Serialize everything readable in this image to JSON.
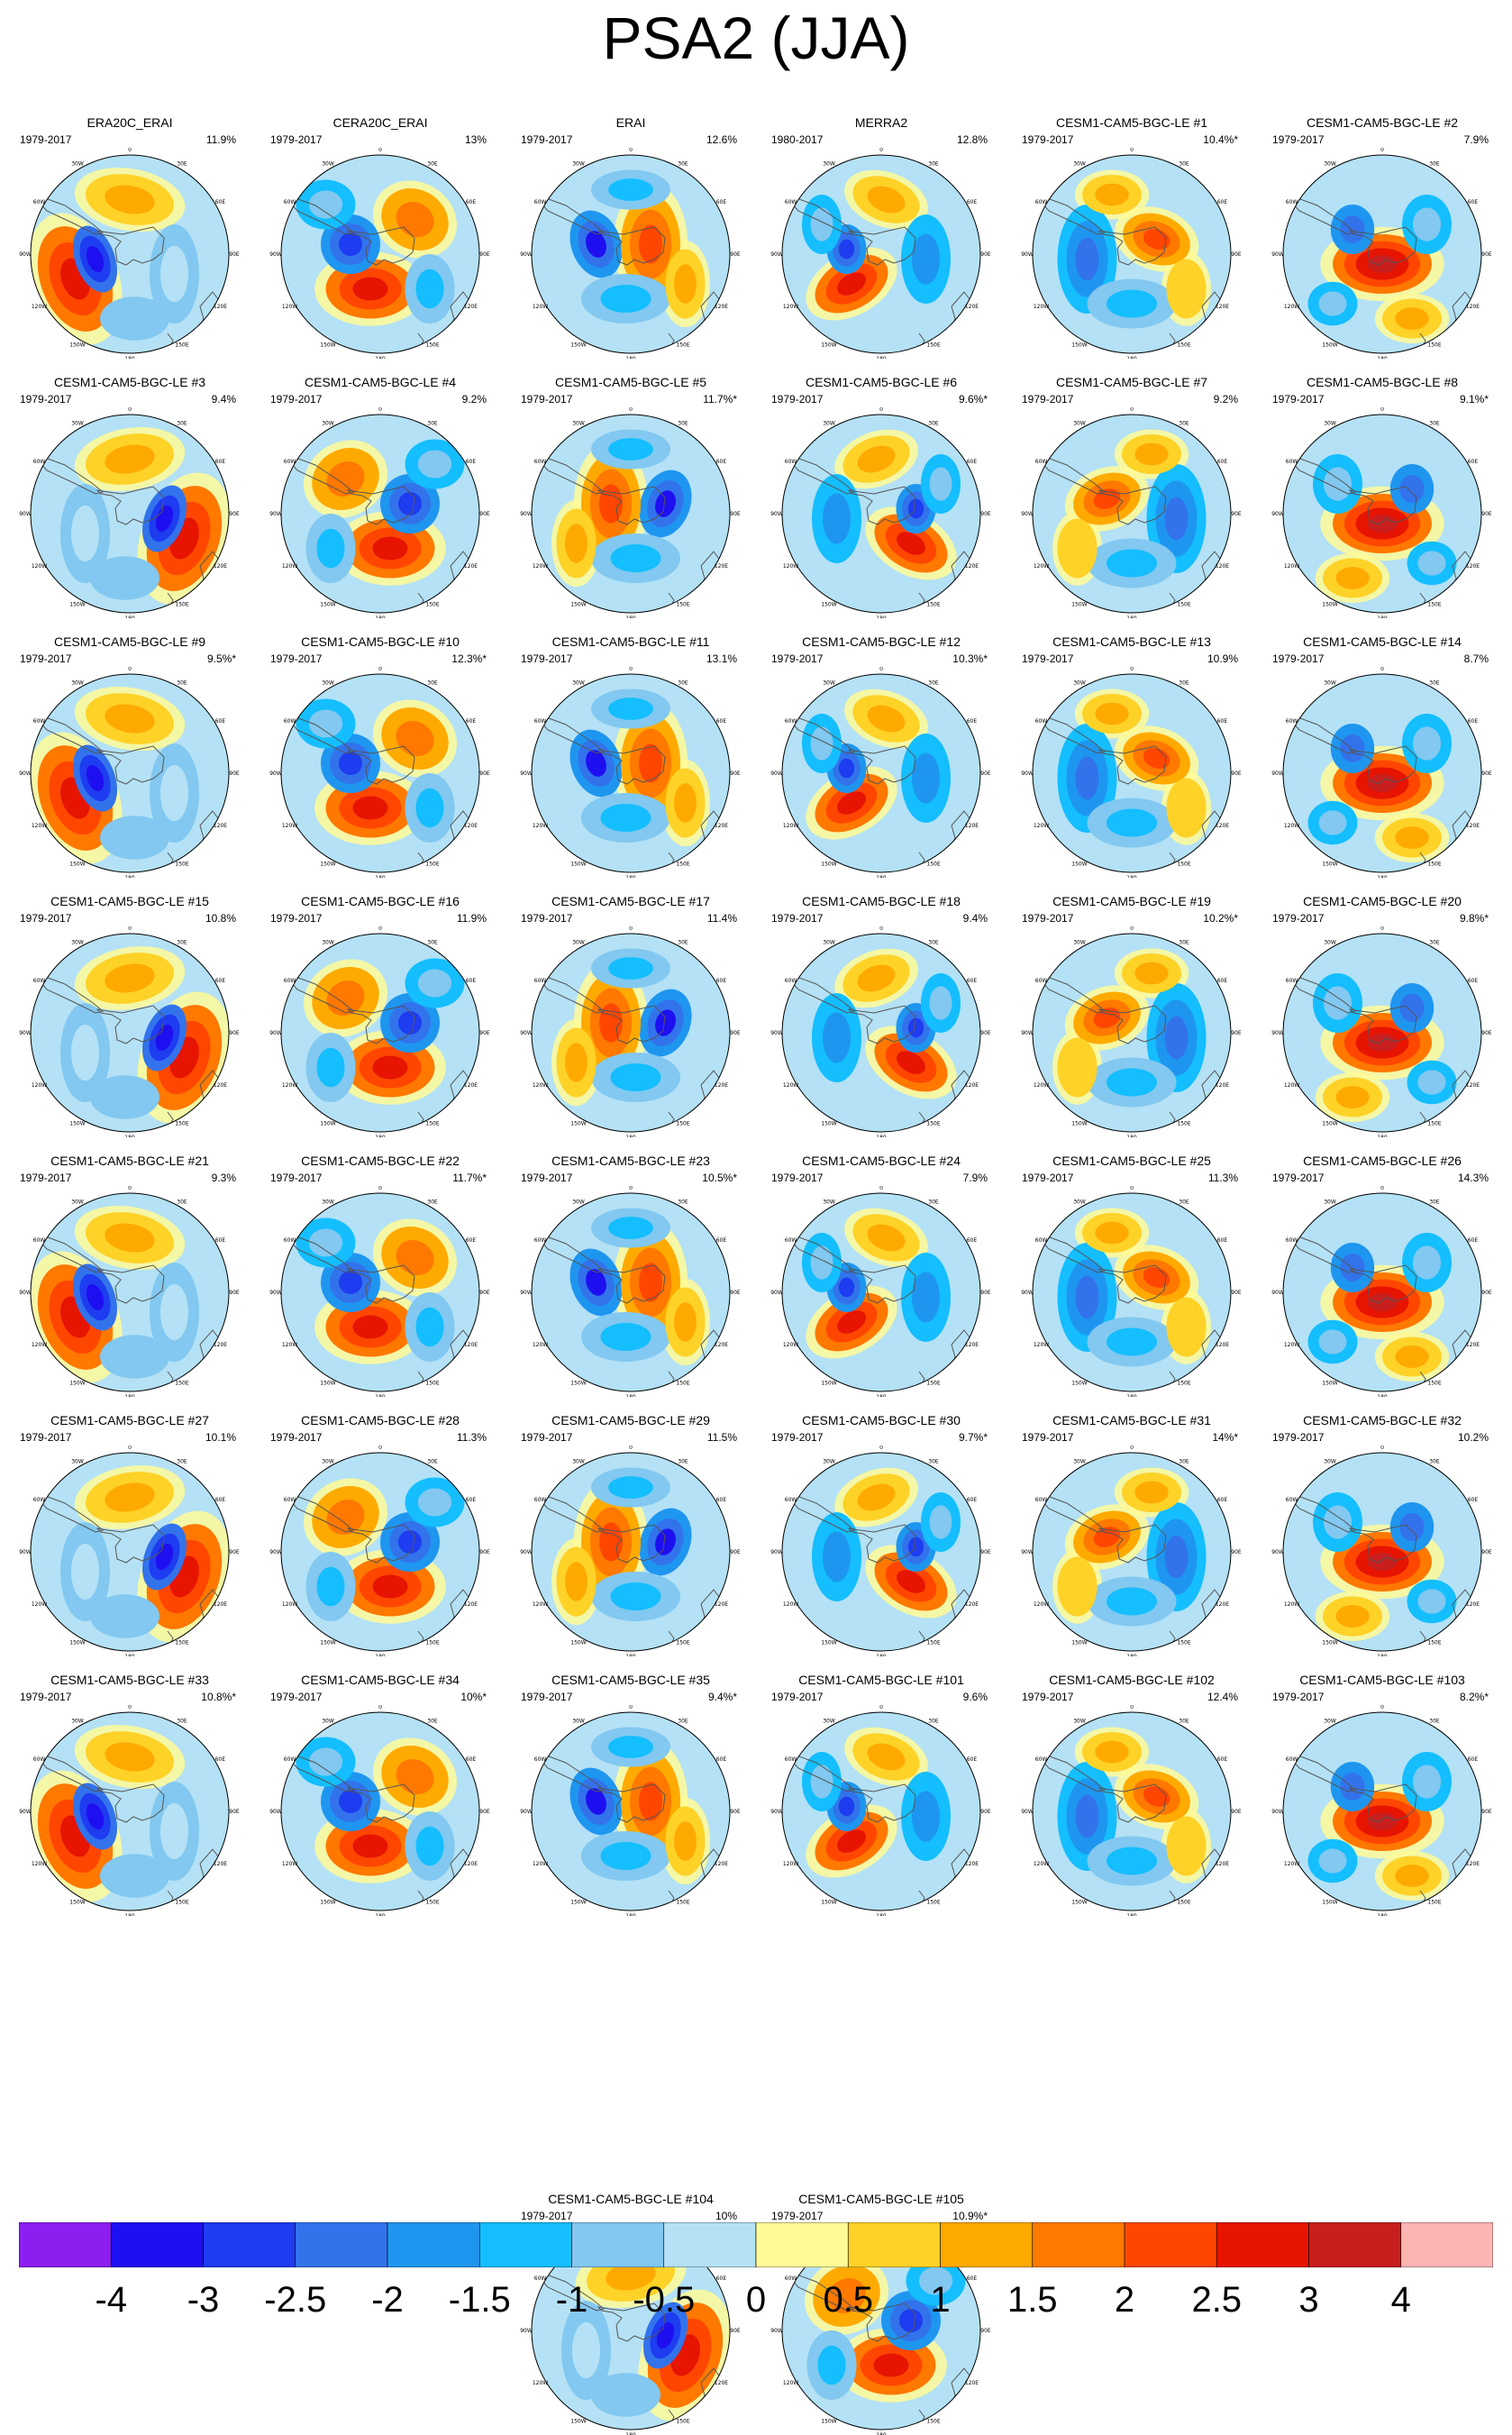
{
  "title": "PSA2 (JJA)",
  "map_labels": {
    "lon_top": "0",
    "lon_30w": "30W",
    "lon_60w": "60W",
    "lon_90w": "90W",
    "lon_120w": "120W",
    "lon_150w": "150W",
    "lon_180": "180",
    "lon_150e": "150E",
    "lon_120e": "120E",
    "lon_90e": "90E",
    "lon_60e": "60E",
    "lon_30e": "30E"
  },
  "colorbar": {
    "colors": [
      "#8c1ef0",
      "#1e0ff0",
      "#1e3cf0",
      "#3273ec",
      "#1e96f0",
      "#14beff",
      "#82c8f0",
      "#b4e1f5",
      "#fffa96",
      "#ffd228",
      "#ffaa00",
      "#ff7800",
      "#ff4600",
      "#e61400",
      "#c81e1e",
      "#ffb4b4"
    ],
    "labels": [
      "-4",
      "-3",
      "-2.5",
      "-2",
      "-1.5",
      "-1",
      "-0.5",
      "0",
      "0.5",
      "1",
      "1.5",
      "2",
      "2.5",
      "3",
      "4"
    ]
  },
  "panels": [
    {
      "title": "ERA20C_ERAI",
      "period": "1979-2017",
      "pct": "11.9%"
    },
    {
      "title": "CERA20C_ERAI",
      "period": "1979-2017",
      "pct": "13%"
    },
    {
      "title": "ERAI",
      "period": "1979-2017",
      "pct": "12.6%"
    },
    {
      "title": "MERRA2",
      "period": "1980-2017",
      "pct": "12.8%"
    },
    {
      "title": "CESM1-CAM5-BGC-LE #1",
      "period": "1979-2017",
      "pct": "10.4%*"
    },
    {
      "title": "CESM1-CAM5-BGC-LE #2",
      "period": "1979-2017",
      "pct": "7.9%"
    },
    {
      "title": "CESM1-CAM5-BGC-LE #3",
      "period": "1979-2017",
      "pct": "9.4%"
    },
    {
      "title": "CESM1-CAM5-BGC-LE #4",
      "period": "1979-2017",
      "pct": "9.2%"
    },
    {
      "title": "CESM1-CAM5-BGC-LE #5",
      "period": "1979-2017",
      "pct": "11.7%*"
    },
    {
      "title": "CESM1-CAM5-BGC-LE #6",
      "period": "1979-2017",
      "pct": "9.6%*"
    },
    {
      "title": "CESM1-CAM5-BGC-LE #7",
      "period": "1979-2017",
      "pct": "9.2%"
    },
    {
      "title": "CESM1-CAM5-BGC-LE #8",
      "period": "1979-2017",
      "pct": "9.1%*"
    },
    {
      "title": "CESM1-CAM5-BGC-LE #9",
      "period": "1979-2017",
      "pct": "9.5%*"
    },
    {
      "title": "CESM1-CAM5-BGC-LE #10",
      "period": "1979-2017",
      "pct": "12.3%*"
    },
    {
      "title": "CESM1-CAM5-BGC-LE #11",
      "period": "1979-2017",
      "pct": "13.1%"
    },
    {
      "title": "CESM1-CAM5-BGC-LE #12",
      "period": "1979-2017",
      "pct": "10.3%*"
    },
    {
      "title": "CESM1-CAM5-BGC-LE #13",
      "period": "1979-2017",
      "pct": "10.9%"
    },
    {
      "title": "CESM1-CAM5-BGC-LE #14",
      "period": "1979-2017",
      "pct": "8.7%"
    },
    {
      "title": "CESM1-CAM5-BGC-LE #15",
      "period": "1979-2017",
      "pct": "10.8%"
    },
    {
      "title": "CESM1-CAM5-BGC-LE #16",
      "period": "1979-2017",
      "pct": "11.9%"
    },
    {
      "title": "CESM1-CAM5-BGC-LE #17",
      "period": "1979-2017",
      "pct": "11.4%"
    },
    {
      "title": "CESM1-CAM5-BGC-LE #18",
      "period": "1979-2017",
      "pct": "9.4%"
    },
    {
      "title": "CESM1-CAM5-BGC-LE #19",
      "period": "1979-2017",
      "pct": "10.2%*"
    },
    {
      "title": "CESM1-CAM5-BGC-LE #20",
      "period": "1979-2017",
      "pct": "9.8%*"
    },
    {
      "title": "CESM1-CAM5-BGC-LE #21",
      "period": "1979-2017",
      "pct": "9.3%"
    },
    {
      "title": "CESM1-CAM5-BGC-LE #22",
      "period": "1979-2017",
      "pct": "11.7%*"
    },
    {
      "title": "CESM1-CAM5-BGC-LE #23",
      "period": "1979-2017",
      "pct": "10.5%*"
    },
    {
      "title": "CESM1-CAM5-BGC-LE #24",
      "period": "1979-2017",
      "pct": "7.9%"
    },
    {
      "title": "CESM1-CAM5-BGC-LE #25",
      "period": "1979-2017",
      "pct": "11.3%"
    },
    {
      "title": "CESM1-CAM5-BGC-LE #26",
      "period": "1979-2017",
      "pct": "14.3%"
    },
    {
      "title": "CESM1-CAM5-BGC-LE #27",
      "period": "1979-2017",
      "pct": "10.1%"
    },
    {
      "title": "CESM1-CAM5-BGC-LE #28",
      "period": "1979-2017",
      "pct": "11.3%"
    },
    {
      "title": "CESM1-CAM5-BGC-LE #29",
      "period": "1979-2017",
      "pct": "11.5%"
    },
    {
      "title": "CESM1-CAM5-BGC-LE #30",
      "period": "1979-2017",
      "pct": "9.7%*"
    },
    {
      "title": "CESM1-CAM5-BGC-LE #31",
      "period": "1979-2017",
      "pct": "14%*"
    },
    {
      "title": "CESM1-CAM5-BGC-LE #32",
      "period": "1979-2017",
      "pct": "10.2%"
    },
    {
      "title": "CESM1-CAM5-BGC-LE #33",
      "period": "1979-2017",
      "pct": "10.8%*"
    },
    {
      "title": "CESM1-CAM5-BGC-LE #34",
      "period": "1979-2017",
      "pct": "10%*"
    },
    {
      "title": "CESM1-CAM5-BGC-LE #35",
      "period": "1979-2017",
      "pct": "9.4%*"
    },
    {
      "title": "CESM1-CAM5-BGC-LE #101",
      "period": "1979-2017",
      "pct": "9.6%"
    },
    {
      "title": "CESM1-CAM5-BGC-LE #102",
      "period": "1979-2017",
      "pct": "12.4%"
    },
    {
      "title": "CESM1-CAM5-BGC-LE #103",
      "period": "1979-2017",
      "pct": "8.2%*"
    },
    {
      "title": "CESM1-CAM5-BGC-LE #104",
      "period": "1979-2017",
      "pct": "10%"
    },
    {
      "title": "CESM1-CAM5-BGC-LE #105",
      "period": "1979-2017",
      "pct": "10.9%*"
    }
  ]
}
